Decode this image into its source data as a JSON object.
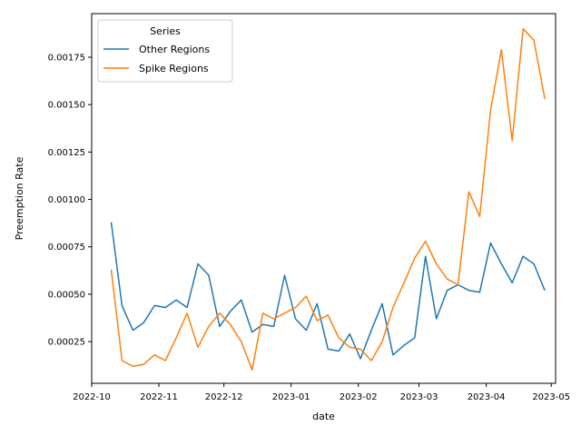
{
  "chart_data": {
    "type": "line",
    "title": "",
    "xlabel": "date",
    "ylabel": "Preemption Rate",
    "x_start": "2022-10-10",
    "x_step_days": 5,
    "xlim": [
      "2022-10-01",
      "2023-05-03"
    ],
    "ylim": [
      3e-05,
      0.00198
    ],
    "x_ticks": [
      "2022-10",
      "2022-11",
      "2022-12",
      "2023-01",
      "2023-02",
      "2023-03",
      "2023-04",
      "2023-05"
    ],
    "x_tick_dates": [
      "2022-10-01",
      "2022-11-01",
      "2022-12-01",
      "2023-01-01",
      "2023-02-01",
      "2023-03-01",
      "2023-04-01",
      "2023-05-01"
    ],
    "y_ticks": [
      0.00025,
      0.0005,
      0.00075,
      0.001,
      0.00125,
      0.0015,
      0.00175
    ],
    "y_tick_labels": [
      "0.00025",
      "0.00050",
      "0.00075",
      "0.00100",
      "0.00125",
      "0.00150",
      "0.00175"
    ],
    "grid": false,
    "legend": {
      "title": "Series",
      "placement": "top-left"
    },
    "series": [
      {
        "name": "Other Regions",
        "color": "#1f77b4",
        "values": [
          0.00088,
          0.00044,
          0.00031,
          0.00035,
          0.00044,
          0.00043,
          0.00047,
          0.00043,
          0.00066,
          0.0006,
          0.00033,
          0.00041,
          0.00047,
          0.0003,
          0.00034,
          0.00033,
          0.0006,
          0.00037,
          0.00031,
          0.00045,
          0.00021,
          0.0002,
          0.00029,
          0.00016,
          0.00031,
          0.00045,
          0.00018,
          0.00023,
          0.00027,
          0.0007,
          0.00037,
          0.00052,
          0.00055,
          0.00052,
          0.00051,
          0.00077,
          0.00066,
          0.00056,
          0.0007,
          0.00066,
          0.00052
        ]
      },
      {
        "name": "Spike Regions",
        "color": "#ff7f0e",
        "values": [
          0.00063,
          0.00015,
          0.00012,
          0.00013,
          0.00018,
          0.00015,
          0.00027,
          0.0004,
          0.00022,
          0.00033,
          0.0004,
          0.00034,
          0.00025,
          0.0001,
          0.0004,
          0.00037,
          0.0004,
          0.00043,
          0.00049,
          0.00036,
          0.00039,
          0.00027,
          0.00022,
          0.00021,
          0.00015,
          0.00025,
          0.00043,
          0.00056,
          0.00069,
          0.00078,
          0.00066,
          0.00058,
          0.00055,
          0.00104,
          0.00091,
          0.00147,
          0.00179,
          0.00131,
          0.0019,
          0.00184,
          0.00153
        ]
      }
    ]
  }
}
